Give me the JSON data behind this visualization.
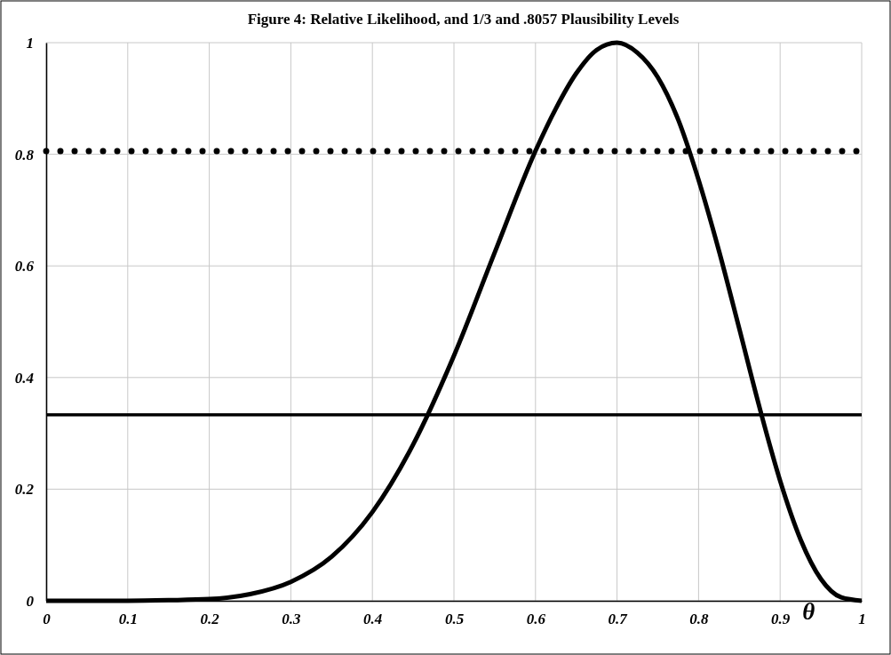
{
  "chart_data": {
    "type": "line",
    "title": "Figure 4: Relative Likelihood, and 1/3 and .8057 Plausibility Levels",
    "xlabel": "θ",
    "x": [
      0,
      0.1,
      0.15,
      0.2,
      0.25,
      0.3,
      0.35,
      0.4,
      0.45,
      0.5,
      0.55,
      0.6,
      0.625,
      0.65,
      0.675,
      0.7,
      0.725,
      0.75,
      0.775,
      0.8,
      0.825,
      0.85,
      0.875,
      0.9,
      0.925,
      0.95,
      0.975,
      1
    ],
    "series": [
      {
        "color": "#000000",
        "values": [
          0,
          0,
          0.001,
          0.003,
          0.012,
          0.034,
          0.079,
          0.159,
          0.28,
          0.439,
          0.624,
          0.806,
          0.882,
          0.945,
          0.987,
          1,
          0.982,
          0.938,
          0.862,
          0.754,
          0.627,
          0.487,
          0.345,
          0.215,
          0.11,
          0.039,
          0.006,
          0
        ]
      }
    ],
    "xlim": [
      0,
      1
    ],
    "xticks": [
      0,
      0.1,
      0.2,
      0.3,
      0.4,
      0.5,
      0.6,
      0.7,
      0.8,
      0.9,
      1
    ],
    "ylim": [
      0,
      1
    ],
    "yticks": [
      0,
      0.2,
      0.4,
      0.6,
      0.8,
      1
    ],
    "grid": true,
    "marker": "none",
    "line_style": "solid",
    "ref_lines": [
      {
        "axis": "y",
        "value": 0.3333,
        "color": "#000000",
        "line_style": "solid"
      },
      {
        "axis": "y",
        "value": 0.8057,
        "color": "#000000",
        "line_style": "dotted"
      }
    ]
  }
}
